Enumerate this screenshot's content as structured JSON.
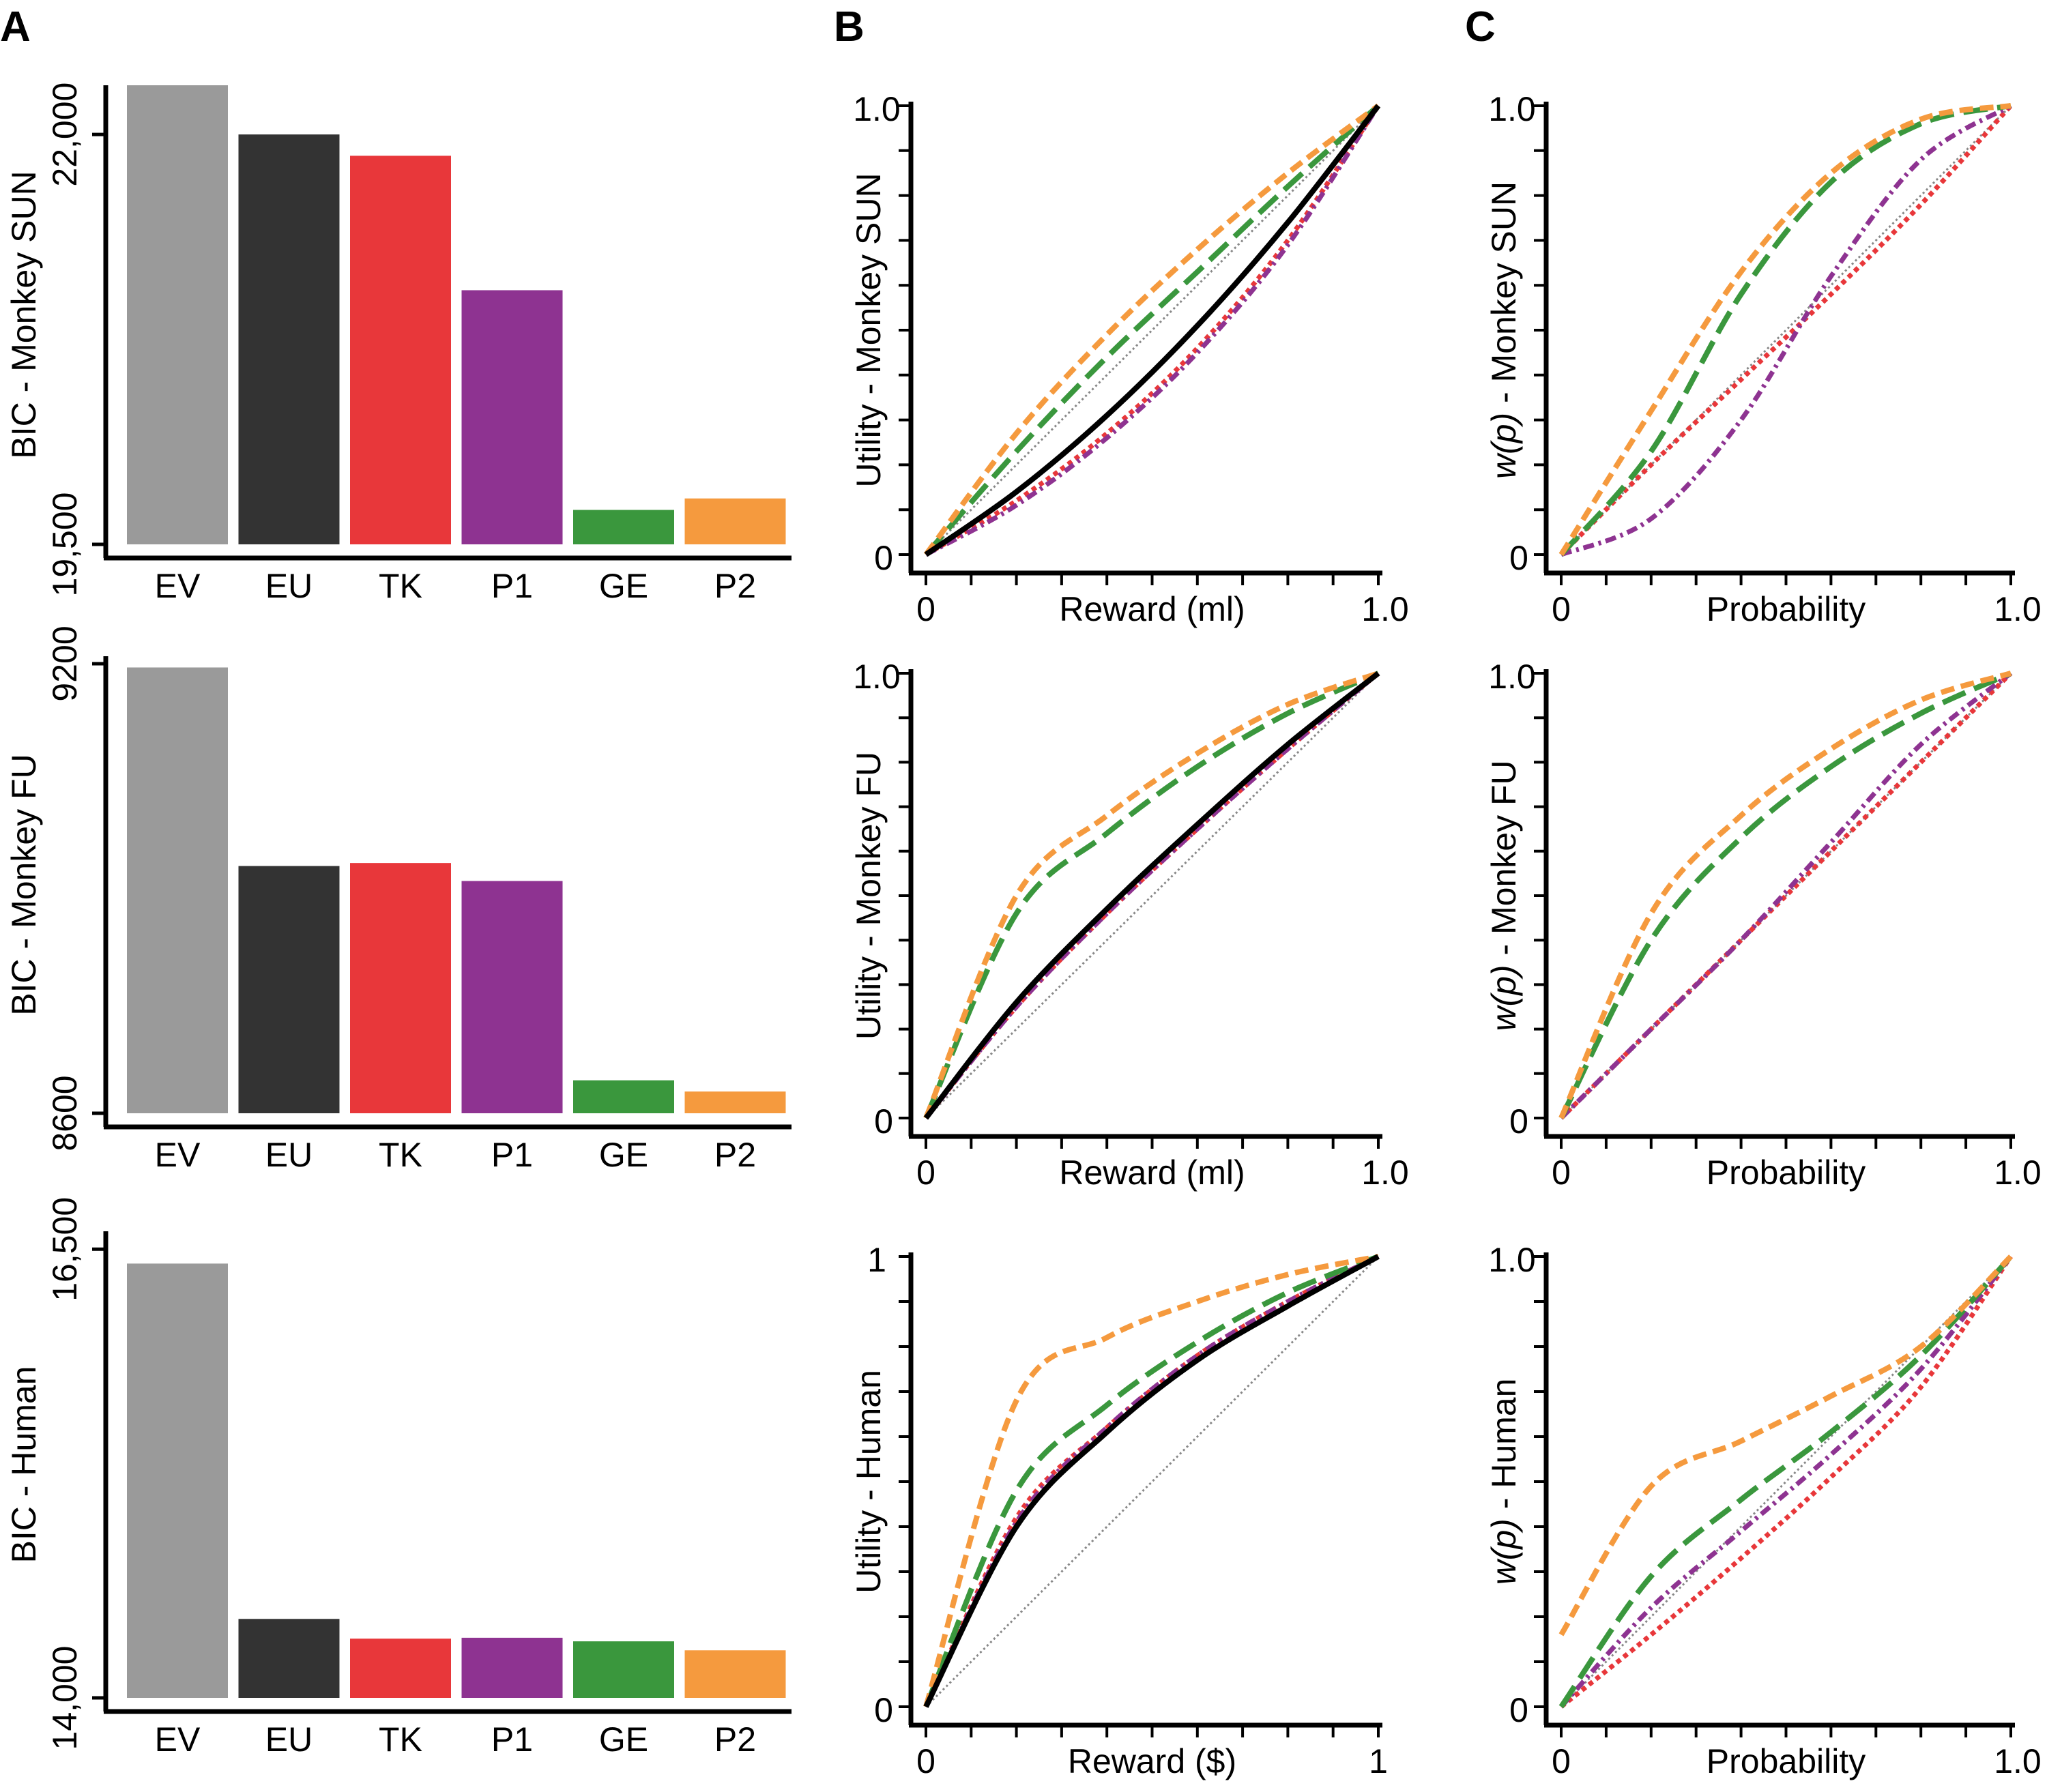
{
  "panel_letters": [
    "A",
    "B",
    "C"
  ],
  "colors": {
    "EV": "#9a9a9a",
    "EU": "#333333",
    "TK": "#e8373a",
    "P1": "#8e3391",
    "GE": "#3a973d",
    "P2": "#f59a3e",
    "axis": "#000000",
    "identity": "#888888"
  },
  "chart_data": [
    {
      "type": "bar",
      "panel": "A",
      "row": "monkey-sun",
      "categories": [
        "EV",
        "EU",
        "TK",
        "P1",
        "GE",
        "P2"
      ],
      "values": [
        22300,
        22000,
        21870,
        21050,
        19710,
        19780
      ],
      "ylabel": "BIC - Monkey SUN",
      "ylim": [
        19500,
        22300
      ],
      "yticks": [
        19500,
        22000
      ],
      "ytick_labels": [
        "19,500",
        "22,000"
      ]
    },
    {
      "type": "bar",
      "panel": "A",
      "row": "monkey-fu",
      "categories": [
        "EV",
        "EU",
        "TK",
        "P1",
        "GE",
        "P2"
      ],
      "values": [
        9195,
        8930,
        8934,
        8910,
        8644,
        8629
      ],
      "ylabel": "BIC - Monkey FU",
      "ylim": [
        8600,
        9210
      ],
      "yticks": [
        8600,
        9200
      ],
      "ytick_labels": [
        "8600",
        "9200"
      ]
    },
    {
      "type": "bar",
      "panel": "A",
      "row": "human",
      "categories": [
        "EV",
        "EU",
        "TK",
        "P1",
        "GE",
        "P2"
      ],
      "values": [
        16420,
        14440,
        14330,
        14335,
        14315,
        14265
      ],
      "ylabel": "BIC - Human",
      "ylim": [
        14000,
        16600
      ],
      "yticks": [
        14000,
        16500
      ],
      "ytick_labels": [
        "14,000",
        "16,500"
      ]
    },
    {
      "type": "line",
      "panel": "B",
      "row": "monkey-sun",
      "xlabel": "Reward (ml)",
      "ylabel": "Utility - Monkey SUN",
      "xlim": [
        0,
        1
      ],
      "ylim": [
        0,
        1
      ],
      "xtick_labels": [
        "0",
        "1.0"
      ],
      "ytick_labels": [
        "0",
        "1.0"
      ],
      "x": [
        0,
        0.2,
        0.4,
        0.6,
        0.8,
        1
      ],
      "series": [
        {
          "key": "EU",
          "values": [
            0,
            0.14,
            0.31,
            0.51,
            0.74,
            1
          ]
        },
        {
          "key": "TK",
          "values": [
            0,
            0.12,
            0.27,
            0.46,
            0.7,
            1
          ]
        },
        {
          "key": "P1",
          "values": [
            0,
            0.11,
            0.26,
            0.45,
            0.69,
            1
          ]
        },
        {
          "key": "GE",
          "values": [
            0,
            0.23,
            0.44,
            0.63,
            0.82,
            1
          ]
        },
        {
          "key": "P2",
          "values": [
            0,
            0.27,
            0.49,
            0.68,
            0.85,
            1
          ]
        }
      ]
    },
    {
      "type": "line",
      "panel": "B",
      "row": "monkey-fu",
      "xlabel": "Reward (ml)",
      "ylabel": "Utility - Monkey FU",
      "xlim": [
        0,
        1
      ],
      "ylim": [
        0,
        1
      ],
      "xtick_labels": [
        "0",
        "1.0"
      ],
      "ytick_labels": [
        "0",
        "1.0"
      ],
      "x": [
        0,
        0.2,
        0.4,
        0.6,
        0.8,
        1
      ],
      "series": [
        {
          "key": "EU",
          "values": [
            0,
            0.26,
            0.47,
            0.66,
            0.84,
            1
          ]
        },
        {
          "key": "TK",
          "values": [
            0,
            0.25,
            0.46,
            0.65,
            0.83,
            1
          ]
        },
        {
          "key": "P1",
          "values": [
            0,
            0.25,
            0.46,
            0.65,
            0.83,
            1
          ]
        },
        {
          "key": "GE",
          "values": [
            0,
            0.46,
            0.64,
            0.79,
            0.91,
            1
          ]
        },
        {
          "key": "P2",
          "values": [
            0,
            0.5,
            0.68,
            0.82,
            0.93,
            1
          ]
        }
      ]
    },
    {
      "type": "line",
      "panel": "B",
      "row": "human",
      "xlabel": "Reward ($)",
      "ylabel": "Utility - Human",
      "xlim": [
        0,
        1
      ],
      "ylim": [
        0,
        1
      ],
      "xtick_labels": [
        "0",
        "1"
      ],
      "ytick_labels": [
        "0",
        "1"
      ],
      "x": [
        0,
        0.2,
        0.4,
        0.6,
        0.8,
        1
      ],
      "series": [
        {
          "key": "EU",
          "values": [
            0,
            0.4,
            0.61,
            0.77,
            0.89,
            1
          ]
        },
        {
          "key": "TK",
          "values": [
            0,
            0.42,
            0.62,
            0.78,
            0.9,
            1
          ]
        },
        {
          "key": "P1",
          "values": [
            0,
            0.41,
            0.62,
            0.78,
            0.9,
            1
          ]
        },
        {
          "key": "GE",
          "values": [
            0,
            0.48,
            0.67,
            0.81,
            0.92,
            1
          ]
        },
        {
          "key": "P2",
          "values": [
            0,
            0.68,
            0.82,
            0.9,
            0.96,
            1
          ]
        }
      ]
    },
    {
      "type": "line",
      "panel": "C",
      "row": "monkey-sun",
      "xlabel": "Probability",
      "ylabel": "w(p) - Monkey SUN",
      "xlim": [
        0,
        1
      ],
      "ylim": [
        0,
        1
      ],
      "xtick_labels": [
        "0",
        "1.0"
      ],
      "ytick_labels": [
        "0",
        "1.0"
      ],
      "x": [
        0,
        0.2,
        0.4,
        0.6,
        0.8,
        1
      ],
      "series": [
        {
          "key": "TK",
          "values": [
            0,
            0.2,
            0.39,
            0.58,
            0.78,
            1
          ]
        },
        {
          "key": "P1",
          "values": [
            0,
            0.08,
            0.3,
            0.62,
            0.88,
            1
          ]
        },
        {
          "key": "GE",
          "values": [
            0,
            0.23,
            0.58,
            0.83,
            0.96,
            1
          ]
        },
        {
          "key": "P2",
          "values": [
            0,
            0.32,
            0.63,
            0.85,
            0.97,
            1
          ]
        }
      ]
    },
    {
      "type": "line",
      "panel": "C",
      "row": "monkey-fu",
      "xlabel": "Probability",
      "ylabel": "w(p) - Monkey FU",
      "xlim": [
        0,
        1
      ],
      "ylim": [
        0,
        1
      ],
      "xtick_labels": [
        "0",
        "1.0"
      ],
      "ytick_labels": [
        "0",
        "1.0"
      ],
      "x": [
        0,
        0.2,
        0.4,
        0.6,
        0.8,
        1
      ],
      "series": [
        {
          "key": "TK",
          "values": [
            0,
            0.2,
            0.4,
            0.6,
            0.8,
            1
          ]
        },
        {
          "key": "P1",
          "values": [
            0,
            0.2,
            0.4,
            0.62,
            0.84,
            1
          ]
        },
        {
          "key": "GE",
          "values": [
            0,
            0.4,
            0.63,
            0.79,
            0.91,
            1
          ]
        },
        {
          "key": "P2",
          "values": [
            0,
            0.46,
            0.68,
            0.83,
            0.94,
            1
          ]
        }
      ]
    },
    {
      "type": "line",
      "panel": "C",
      "row": "human",
      "xlabel": "Probability",
      "ylabel": "w(p) - Human",
      "xlim": [
        0,
        1
      ],
      "ylim": [
        0,
        1
      ],
      "xtick_labels": [
        "0",
        "1.0"
      ],
      "ytick_labels": [
        "0",
        "1.0"
      ],
      "x": [
        0,
        0.2,
        0.4,
        0.6,
        0.8,
        1
      ],
      "series": [
        {
          "key": "TK",
          "values": [
            0,
            0.16,
            0.33,
            0.51,
            0.71,
            1
          ]
        },
        {
          "key": "P1",
          "values": [
            0,
            0.22,
            0.39,
            0.56,
            0.75,
            1
          ]
        },
        {
          "key": "GE",
          "values": [
            0,
            0.29,
            0.46,
            0.61,
            0.78,
            1
          ]
        },
        {
          "key": "P2",
          "values": [
            0.16,
            0.49,
            0.59,
            0.69,
            0.8,
            1
          ]
        }
      ]
    }
  ]
}
